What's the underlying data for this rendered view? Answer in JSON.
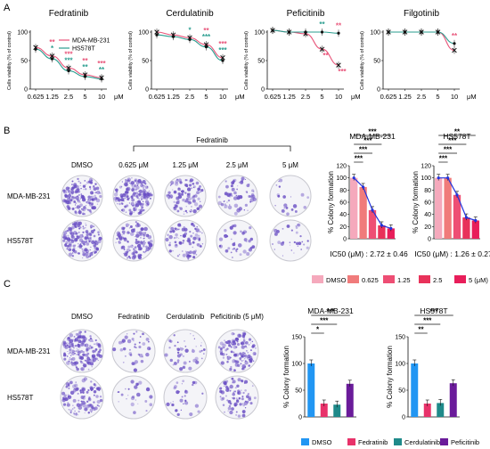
{
  "panel_labels": {
    "a": "A",
    "b": "B",
    "c": "C"
  },
  "chart_data": [
    {
      "type": "line",
      "id": "A-fedratinib",
      "title": "Fedratinib",
      "xlabel": "μM",
      "ylabel": "Cells viability (% of control)",
      "x_ticks": [
        "0.625",
        "1.25",
        "2.5",
        "5",
        "10"
      ],
      "ylim": [
        0,
        100
      ],
      "y_ticks": [
        "0",
        "50",
        "100"
      ],
      "legend": [
        {
          "name": "MDA-MB-231",
          "color": "#e8557a"
        },
        {
          "name": "HS578T",
          "color": "#2a9d8f"
        }
      ],
      "series": [
        {
          "name": "MDA-MB-231",
          "values": [
            73,
            58,
            37,
            25,
            20
          ]
        },
        {
          "name": "HS578T",
          "values": [
            70,
            53,
            32,
            22,
            18
          ]
        }
      ],
      "stars": [
        {
          "x": 1,
          "above": [
            {
              "t": "**",
              "c": "#e8557a"
            },
            {
              "t": "*",
              "c": "#2a9d8f"
            }
          ]
        },
        {
          "x": 2,
          "above": [
            {
              "t": "***",
              "c": "#e8557a"
            },
            {
              "t": "***",
              "c": "#2a9d8f"
            }
          ]
        },
        {
          "x": 3,
          "above": [
            {
              "t": "**",
              "c": "#e8557a"
            },
            {
              "t": "**",
              "c": "#2a9d8f"
            }
          ]
        },
        {
          "x": 4,
          "above": [
            {
              "t": "***",
              "c": "#e8557a"
            },
            {
              "t": "**",
              "c": "#2a9d8f"
            }
          ]
        }
      ]
    },
    {
      "type": "line",
      "id": "A-cerdulatinib",
      "title": "Cerdulatinib",
      "xlabel": "μM",
      "ylabel": "Cells viability (% of control)",
      "x_ticks": [
        "0.625",
        "1.25",
        "2.5",
        "5",
        "10"
      ],
      "ylim": [
        0,
        100
      ],
      "y_ticks": [
        "0",
        "50",
        "100"
      ],
      "series": [
        {
          "name": "MDA-MB-231",
          "values": [
            100,
            95,
            90,
            78,
            55
          ]
        },
        {
          "name": "HS578T",
          "values": [
            95,
            92,
            87,
            74,
            50
          ]
        }
      ],
      "stars": [
        {
          "x": 2,
          "above": [
            {
              "t": "*",
              "c": "#2a9d8f"
            }
          ]
        },
        {
          "x": 3,
          "above": [
            {
              "t": "**",
              "c": "#e8557a"
            },
            {
              "t": "***",
              "c": "#2a9d8f"
            }
          ]
        },
        {
          "x": 4,
          "above": [
            {
              "t": "***",
              "c": "#e8557a"
            },
            {
              "t": "***",
              "c": "#2a9d8f"
            }
          ]
        }
      ]
    },
    {
      "type": "line",
      "id": "A-peficitinib",
      "title": "Peficitinib",
      "xlabel": "μM",
      "ylabel": "Cells viability (% of control)",
      "x_ticks": [
        "0.625",
        "1.25",
        "2.5",
        "5",
        "10"
      ],
      "ylim": [
        0,
        100
      ],
      "y_ticks": [
        "0",
        "50",
        "100"
      ],
      "series": [
        {
          "name": "MDA-MB-231",
          "values": [
            103,
            100,
            97,
            70,
            42
          ]
        },
        {
          "name": "HS578T",
          "values": [
            103,
            100,
            100,
            100,
            98
          ]
        }
      ],
      "stars": [
        {
          "x": 3,
          "above": [
            {
              "t": "**",
              "c": "#2a9d8f"
            }
          ]
        },
        {
          "x": 3,
          "below": [
            {
              "t": "**",
              "c": "#e8557a"
            }
          ]
        },
        {
          "x": 4,
          "above": [
            {
              "t": "**",
              "c": "#e8557a"
            }
          ]
        },
        {
          "x": 4,
          "below": [
            {
              "t": "***",
              "c": "#e8557a"
            }
          ]
        }
      ]
    },
    {
      "type": "line",
      "id": "A-filgotinib",
      "title": "Filgotinib",
      "xlabel": "μM",
      "ylabel": "Cells viability (% of control)",
      "x_ticks": [
        "0.625",
        "1.25",
        "2.5",
        "5",
        "10"
      ],
      "ylim": [
        0,
        100
      ],
      "y_ticks": [
        "0",
        "50",
        "100"
      ],
      "series": [
        {
          "name": "MDA-MB-231",
          "values": [
            100,
            100,
            100,
            100,
            68
          ]
        },
        {
          "name": "HS578T",
          "values": [
            100,
            100,
            100,
            100,
            80
          ]
        }
      ],
      "stars": [
        {
          "x": 4,
          "above": [
            {
              "t": "**",
              "c": "#e8557a"
            }
          ]
        }
      ]
    },
    {
      "type": "bar",
      "id": "B-mda",
      "title": "MDA-MB-231",
      "ylabel": "% Colony formation",
      "categories": [
        "DMSO",
        "0.625",
        "1.25",
        "2.5",
        "5 (μM)"
      ],
      "values": [
        100,
        85,
        47,
        22,
        17
      ],
      "ylim": [
        0,
        120
      ],
      "y_ticks": [
        "0",
        "20",
        "40",
        "60",
        "80",
        "100",
        "120"
      ],
      "colors": [
        "#f5a9bc",
        "#f07b7b",
        "#ee4e74",
        "#e8325a",
        "#e81e5a"
      ],
      "ic50": "IC50 (μM) : 2.72 ± 0.46",
      "brackets": [
        "***",
        "***",
        "***",
        "***"
      ]
    },
    {
      "type": "bar",
      "id": "B-hs",
      "title": "HS578T",
      "ylabel": "% Colony formation",
      "categories": [
        "DMSO",
        "0.625",
        "1.25",
        "2.5",
        "5 (μM)"
      ],
      "values": [
        100,
        100,
        72,
        35,
        30
      ],
      "ylim": [
        0,
        120
      ],
      "y_ticks": [
        "0",
        "20",
        "40",
        "60",
        "80",
        "100",
        "120"
      ],
      "colors": [
        "#f5a9bc",
        "#f07b7b",
        "#ee4e74",
        "#e8325a",
        "#e81e5a"
      ],
      "ic50": "IC50 (μM) : 1.26 ± 0.27",
      "brackets": [
        "**",
        "***",
        "***",
        "***"
      ]
    },
    {
      "type": "bar",
      "id": "C-mda",
      "title": "MDA-MB-231",
      "ylabel": "% Colony formation",
      "categories": [
        "DMSO",
        "Fedratinib",
        "Cerdulatinib",
        "Peficitinib"
      ],
      "values": [
        100,
        25,
        23,
        62
      ],
      "ylim": [
        0,
        150
      ],
      "y_ticks": [
        "0",
        "50",
        "100",
        "150"
      ],
      "colors": [
        "#2196f3",
        "#e8326a",
        "#1f8a8a",
        "#6a1b9a"
      ],
      "brackets": [
        "***",
        "***",
        "*"
      ]
    },
    {
      "type": "bar",
      "id": "C-hs",
      "title": "HS578T",
      "ylabel": "% Colony formation",
      "categories": [
        "DMSO",
        "Fedratinib",
        "Cerdulatinib",
        "Peficitinib"
      ],
      "values": [
        100,
        25,
        26,
        63
      ],
      "ylim": [
        0,
        150
      ],
      "y_ticks": [
        "0",
        "50",
        "100",
        "150"
      ],
      "colors": [
        "#2196f3",
        "#e8326a",
        "#1f8a8a",
        "#6a1b9a"
      ],
      "brackets": [
        "***",
        "***",
        "**"
      ]
    }
  ],
  "colony_b": {
    "group_label": "Fedratinib",
    "columns": [
      "DMSO",
      "0.625 μM",
      "1.25 μM",
      "2.5 μM",
      "5 μM"
    ],
    "rows": [
      "MDA-MB-231",
      "HS578T"
    ],
    "density": [
      [
        0.9,
        0.95,
        0.55,
        0.35,
        0.08
      ],
      [
        0.85,
        0.7,
        0.45,
        0.2,
        0.15
      ]
    ]
  },
  "colony_c": {
    "columns": [
      "DMSO",
      "Fedratinib",
      "Cerdulatinib",
      "Peficitinib (5 μM)"
    ],
    "rows": [
      "MDA-MB-231",
      "HS578T"
    ],
    "density": [
      [
        0.95,
        0.2,
        0.25,
        0.7
      ],
      [
        0.6,
        0.12,
        0.15,
        0.45
      ]
    ]
  },
  "legend_b": [
    "DMSO",
    "0.625",
    "1.25",
    "2.5",
    "5 (μM)"
  ],
  "legend_c": [
    "DMSO",
    "Fedratinib",
    "Cerdulatinib",
    "Peficitinib"
  ],
  "colors": {
    "dish_stain": "#6a4fc4",
    "dish_edge": "#c8c8d0",
    "dose_line": "#2233dd"
  }
}
